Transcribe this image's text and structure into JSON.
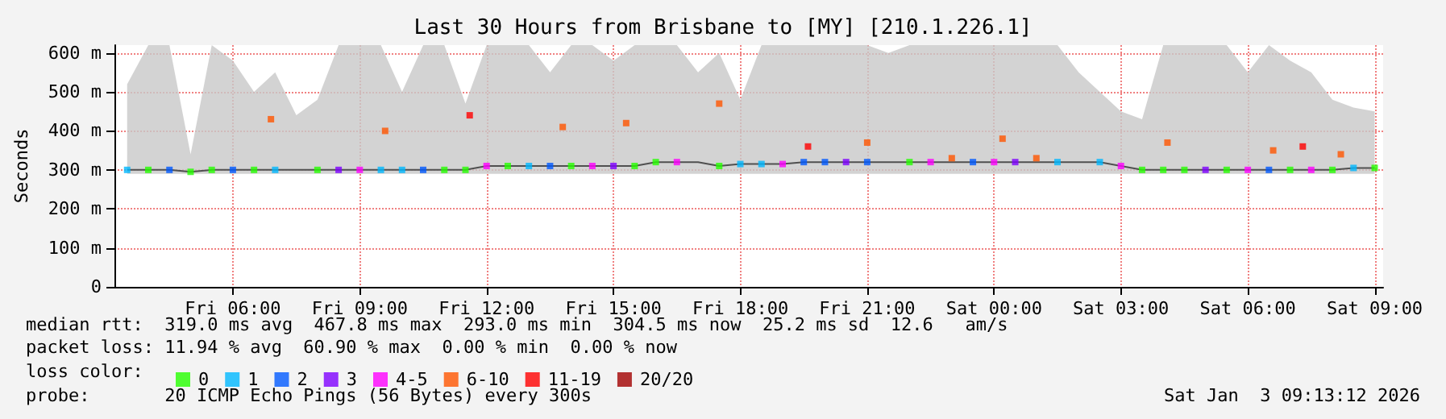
{
  "chart_data": {
    "type": "line",
    "title": "Last 30 Hours from Brisbane to [MY] [210.1.226.1]",
    "ylabel": "Seconds",
    "xlim": [
      "2026-01-02T03:12",
      "2026-01-03T09:12"
    ],
    "xticks": [
      {
        "value": "2026-01-02T06:00",
        "label": "Fri 06:00"
      },
      {
        "value": "2026-01-02T09:00",
        "label": "Fri 09:00"
      },
      {
        "value": "2026-01-02T12:00",
        "label": "Fri 12:00"
      },
      {
        "value": "2026-01-02T15:00",
        "label": "Fri 15:00"
      },
      {
        "value": "2026-01-02T18:00",
        "label": "Fri 18:00"
      },
      {
        "value": "2026-01-02T21:00",
        "label": "Fri 21:00"
      },
      {
        "value": "2026-01-03T00:00",
        "label": "Sat 00:00"
      },
      {
        "value": "2026-01-03T03:00",
        "label": "Sat 03:00"
      },
      {
        "value": "2026-01-03T06:00",
        "label": "Sat 06:00"
      },
      {
        "value": "2026-01-03T09:00",
        "label": "Sat 09:00"
      }
    ],
    "ylim": [
      0,
      620
    ],
    "yticks": [
      0,
      {
        "value": 100,
        "label": "100 m"
      },
      {
        "value": 200,
        "label": "200 m"
      },
      {
        "value": 300,
        "label": "300 m"
      },
      {
        "value": 400,
        "label": "400 m"
      },
      {
        "value": 500,
        "label": "500 m"
      },
      {
        "value": 600,
        "label": "600 m"
      }
    ],
    "grid": true,
    "legend": "bottom left",
    "legend_title": "loss color:",
    "series": [
      {
        "color": "#505050",
        "x": [
          "2026-01-02T03:30",
          "2026-01-02T04:00",
          "2026-01-02T04:30",
          "2026-01-02T05:00",
          "2026-01-02T05:30",
          "2026-01-02T06:00",
          "2026-01-02T06:30",
          "2026-01-02T07:00",
          "2026-01-02T07:30",
          "2026-01-02T08:00",
          "2026-01-02T08:30",
          "2026-01-02T09:00",
          "2026-01-02T09:30",
          "2026-01-02T10:00",
          "2026-01-02T10:30",
          "2026-01-02T11:00",
          "2026-01-02T11:30",
          "2026-01-02T12:00",
          "2026-01-02T12:30",
          "2026-01-02T13:00",
          "2026-01-02T13:30",
          "2026-01-02T14:00",
          "2026-01-02T14:30",
          "2026-01-02T15:00",
          "2026-01-02T15:30",
          "2026-01-02T16:00",
          "2026-01-02T16:30",
          "2026-01-02T17:00",
          "2026-01-02T17:30",
          "2026-01-02T18:00",
          "2026-01-02T18:30",
          "2026-01-02T19:00",
          "2026-01-02T19:30",
          "2026-01-02T20:00",
          "2026-01-02T20:30",
          "2026-01-02T21:00",
          "2026-01-02T21:30",
          "2026-01-02T22:00",
          "2026-01-02T22:30",
          "2026-01-02T23:00",
          "2026-01-02T23:30",
          "2026-01-03T00:00",
          "2026-01-03T00:30",
          "2026-01-03T01:00",
          "2026-01-03T01:30",
          "2026-01-03T02:00",
          "2026-01-03T02:30",
          "2026-01-03T03:00",
          "2026-01-03T03:30",
          "2026-01-03T04:00",
          "2026-01-03T04:30",
          "2026-01-03T05:00",
          "2026-01-03T05:30",
          "2026-01-03T06:00",
          "2026-01-03T06:30",
          "2026-01-03T07:00",
          "2026-01-03T07:30",
          "2026-01-03T08:00",
          "2026-01-03T08:30",
          "2026-01-03T09:00"
        ],
        "values": [
          300,
          300,
          300,
          295,
          300,
          300,
          300,
          300,
          300,
          300,
          300,
          300,
          300,
          300,
          300,
          300,
          300,
          310,
          310,
          310,
          310,
          310,
          310,
          310,
          310,
          320,
          320,
          320,
          310,
          315,
          315,
          315,
          320,
          320,
          320,
          320,
          320,
          320,
          320,
          320,
          320,
          320,
          320,
          320,
          320,
          320,
          320,
          310,
          300,
          300,
          300,
          300,
          300,
          300,
          300,
          300,
          300,
          300,
          305,
          305
        ],
        "lower": [
          290,
          290,
          290,
          290,
          290,
          290,
          290,
          290,
          290,
          290,
          290,
          290,
          290,
          290,
          290,
          290,
          290,
          290,
          290,
          290,
          290,
          290,
          290,
          290,
          290,
          290,
          290,
          290,
          290,
          290,
          290,
          290,
          290,
          290,
          290,
          290,
          290,
          290,
          290,
          290,
          290,
          290,
          290,
          290,
          290,
          290,
          290,
          290,
          290,
          290,
          290,
          290,
          290,
          290,
          290,
          290,
          290,
          290,
          290,
          290
        ],
        "upper": [
          520,
          620,
          620,
          340,
          620,
          580,
          500,
          550,
          440,
          480,
          620,
          620,
          620,
          500,
          620,
          620,
          470,
          620,
          620,
          620,
          550,
          620,
          620,
          580,
          620,
          620,
          620,
          550,
          600,
          480,
          620,
          620,
          620,
          620,
          620,
          620,
          600,
          620,
          620,
          620,
          620,
          620,
          620,
          620,
          620,
          550,
          500,
          450,
          430,
          620,
          620,
          620,
          620,
          550,
          620,
          580,
          550,
          480,
          460,
          450
        ]
      },
      {
        "type": "scatter",
        "marker": "square",
        "name": "0",
        "color": "#26ff00",
        "x": [
          "2026-01-02T04:00",
          "2026-01-02T05:00",
          "2026-01-02T05:30",
          "2026-01-02T06:30",
          "2026-01-02T08:00",
          "2026-01-02T11:00",
          "2026-01-02T11:30",
          "2026-01-02T12:30",
          "2026-01-02T14:00",
          "2026-01-02T15:30",
          "2026-01-02T16:00",
          "2026-01-02T17:30",
          "2026-01-02T22:00",
          "2026-01-03T03:30",
          "2026-01-03T04:00",
          "2026-01-03T04:30",
          "2026-01-03T05:30",
          "2026-01-03T07:00",
          "2026-01-03T08:00",
          "2026-01-03T09:00"
        ],
        "values": [
          300,
          295,
          300,
          300,
          300,
          300,
          300,
          310,
          310,
          310,
          320,
          310,
          320,
          300,
          300,
          300,
          300,
          300,
          300,
          305
        ]
      },
      {
        "type": "scatter",
        "marker": "square",
        "name": "1",
        "color": "#00b8ff",
        "x": [
          "2026-01-02T03:30",
          "2026-01-02T07:00",
          "2026-01-02T09:30",
          "2026-01-02T10:00",
          "2026-01-02T13:00",
          "2026-01-02T18:00",
          "2026-01-02T18:30",
          "2026-01-03T01:30",
          "2026-01-03T02:30",
          "2026-01-03T08:30"
        ],
        "values": [
          300,
          300,
          300,
          300,
          310,
          315,
          315,
          320,
          320,
          305
        ]
      },
      {
        "type": "scatter",
        "marker": "square",
        "name": "2",
        "color": "#0059ff",
        "x": [
          "2026-01-02T04:30",
          "2026-01-02T06:00",
          "2026-01-02T10:30",
          "2026-01-02T13:30",
          "2026-01-02T19:30",
          "2026-01-02T20:00",
          "2026-01-02T21:00",
          "2026-01-02T23:30",
          "2026-01-03T06:30"
        ],
        "values": [
          300,
          300,
          300,
          310,
          320,
          320,
          320,
          320,
          300
        ]
      },
      {
        "type": "scatter",
        "marker": "square",
        "name": "3",
        "color": "#7e00ff",
        "x": [
          "2026-01-02T08:30",
          "2026-01-02T15:00",
          "2026-01-02T20:30",
          "2026-01-03T00:30",
          "2026-01-03T05:00"
        ],
        "values": [
          300,
          310,
          320,
          320,
          300
        ]
      },
      {
        "type": "scatter",
        "marker": "square",
        "name": "4-5",
        "color": "#ff00ff",
        "x": [
          "2026-01-02T09:00",
          "2026-01-02T12:00",
          "2026-01-02T14:30",
          "2026-01-02T16:30",
          "2026-01-02T19:00",
          "2026-01-02T22:30",
          "2026-01-03T00:00",
          "2026-01-03T03:00",
          "2026-01-03T06:00",
          "2026-01-03T07:30"
        ],
        "values": [
          300,
          310,
          310,
          320,
          315,
          320,
          320,
          310,
          300,
          300
        ]
      },
      {
        "type": "scatter",
        "marker": "square",
        "name": "6-10",
        "color": "#ff5500",
        "x": [
          "2026-01-02T06:54",
          "2026-01-02T09:36",
          "2026-01-02T13:48",
          "2026-01-02T15:18",
          "2026-01-02T17:30",
          "2026-01-02T21:00",
          "2026-01-03T00:12",
          "2026-01-03T04:06",
          "2026-01-03T06:36",
          "2026-01-03T08:12",
          "2026-01-02T23:00",
          "2026-01-03T01:00"
        ],
        "values": [
          430,
          400,
          410,
          420,
          470,
          370,
          380,
          370,
          350,
          340,
          330,
          330
        ]
      },
      {
        "type": "scatter",
        "marker": "square",
        "name": "11-19",
        "color": "#ff0000",
        "x": [
          "2026-01-02T11:36",
          "2026-01-02T19:36",
          "2026-01-03T07:18"
        ],
        "values": [
          440,
          360,
          360
        ]
      },
      {
        "type": "scatter",
        "marker": "square",
        "name": "20/20",
        "color": "#a10000"
      }
    ],
    "annotations": [
      "median rtt:  319.0 ms avg  467.8 ms max  293.0 ms min  304.5 ms now  25.2 ms sd  12.6   am/s",
      "packet loss: 11.94 % avg  60.90 % max  0.00 % min  0.00 % now",
      "probe:       20 ICMP Echo Pings (56 Bytes) every 300s",
      "Sat Jan  3 09:13:12 2026"
    ]
  }
}
